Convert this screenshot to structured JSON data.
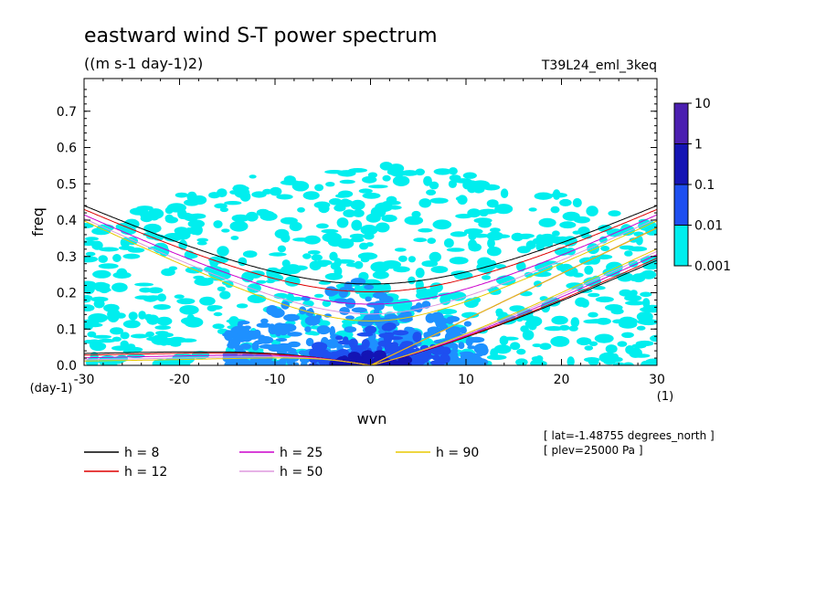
{
  "chart_data": {
    "type": "heatmap",
    "title": "eastward wind S-T power spectrum",
    "subtitle": "((m s-1 day-1)2)",
    "run_label": "T39L24_eml_3keq",
    "xlabel": "wvn",
    "ylabel": "freq",
    "y_unit": "(day-1)",
    "x_unit": "(1)",
    "xlim": [
      -30,
      30
    ],
    "ylim": [
      0,
      0.79
    ],
    "x_ticks": [
      "-30",
      "-20",
      "-10",
      "0",
      "10",
      "20",
      "30"
    ],
    "y_ticks": [
      "0.0",
      "0.1",
      "0.2",
      "0.3",
      "0.4",
      "0.5",
      "0.6",
      "0.7"
    ],
    "colorbar": {
      "labels": [
        "10",
        "1",
        "0.1",
        "0.01",
        "0.001"
      ],
      "colors": [
        "#4b1fb0",
        "#1414b4",
        "#1e4ff0",
        "#1e90ff",
        "#00eeee"
      ]
    },
    "notes": [
      "[ lat=-1.48755 degrees_north ]",
      "[ plev=25000 Pa ]"
    ],
    "dispersion_curves": [
      {
        "label": "h =  8",
        "h": 8,
        "color": "#000000"
      },
      {
        "label": "h = 12",
        "h": 12,
        "color": "#dd0000"
      },
      {
        "label": "h = 25",
        "h": 25,
        "color": "#cc00cc"
      },
      {
        "label": "h = 50",
        "h": 50,
        "color": "#dd99dd"
      },
      {
        "label": "h = 90",
        "h": 90,
        "color": "#e8c800"
      }
    ],
    "spectral_regions": [
      {
        "level": "0.001",
        "desc": "broad cyan background",
        "x": [
          -30,
          30
        ],
        "y": [
          0,
          0.55
        ]
      },
      {
        "level": "0.01",
        "desc": "low-frequency band",
        "x": [
          -15,
          12
        ],
        "y": [
          0,
          0.25
        ]
      },
      {
        "level": "0.1",
        "desc": "core near origin",
        "x": [
          -6,
          8
        ],
        "y": [
          0,
          0.12
        ]
      },
      {
        "level": "1",
        "desc": "peak",
        "x": [
          -4,
          4
        ],
        "y": [
          0,
          0.04
        ]
      }
    ]
  }
}
